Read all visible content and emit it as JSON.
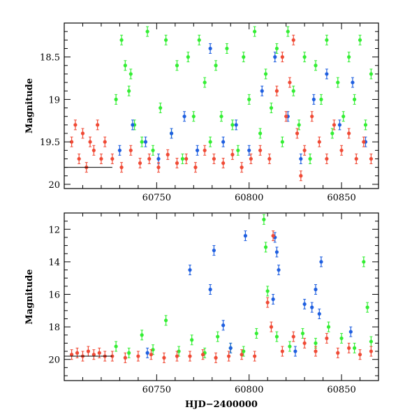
{
  "chart_data": [
    {
      "type": "scatter",
      "panel": "top",
      "xlim": [
        60700,
        60870
      ],
      "ylim": [
        20.05,
        18.1
      ],
      "y_inverted": true,
      "ylabel": "Magnitude",
      "xlabel": "",
      "x_ticks": [
        60750,
        60800,
        60850
      ],
      "y_ticks": [
        18.5,
        19,
        19.5,
        20
      ],
      "y_tick_labels": [
        "18.5",
        "19",
        "19.5",
        "20"
      ],
      "reference_line": {
        "y": 19.8,
        "x_range": [
          60700,
          60726
        ]
      },
      "series": [
        {
          "color": "#33ee33",
          "band": "green",
          "x": [
            60728,
            60731,
            60733,
            60735,
            60736,
            60738,
            60742,
            60745,
            60748,
            60752,
            60755,
            60758,
            60761,
            60764,
            60767,
            60770,
            60773,
            60776,
            60779,
            60782,
            60785,
            60788,
            60791,
            60794,
            60797,
            60800,
            60803,
            60806,
            60809,
            60812,
            60815,
            60818,
            60821,
            60824,
            60827,
            60830,
            60833,
            60836,
            60839,
            60842,
            60845,
            60848,
            60851,
            60854,
            60857,
            60860,
            60863,
            60866
          ],
          "y": [
            19.0,
            18.3,
            18.6,
            18.9,
            18.7,
            19.3,
            19.5,
            18.2,
            19.6,
            19.1,
            18.3,
            19.4,
            18.6,
            19.7,
            18.5,
            19.2,
            18.3,
            18.8,
            19.5,
            18.6,
            19.2,
            18.4,
            19.3,
            19.6,
            18.5,
            19.0,
            18.2,
            19.4,
            18.7,
            19.1,
            18.4,
            19.5,
            18.2,
            18.9,
            19.3,
            18.5,
            19.7,
            18.6,
            19.0,
            18.3,
            19.4,
            18.8,
            19.2,
            18.5,
            19.0,
            18.3,
            19.3,
            18.7
          ]
        },
        {
          "color": "#1f5fe0",
          "band": "blue",
          "x": [
            60730,
            60737,
            60744,
            60751,
            60758,
            60765,
            60772,
            60779,
            60786,
            60793,
            60800,
            60807,
            60814,
            60821,
            60828,
            60835,
            60842,
            60849,
            60856,
            60863
          ],
          "y": [
            19.6,
            19.3,
            19.5,
            19.7,
            19.4,
            19.2,
            19.6,
            18.4,
            19.5,
            19.3,
            19.6,
            18.9,
            18.5,
            19.2,
            19.7,
            19.0,
            18.7,
            19.3,
            18.8,
            19.5
          ]
        },
        {
          "color": "#f04a35",
          "band": "red",
          "x": [
            60704,
            60706,
            60708,
            60710,
            60712,
            60714,
            60716,
            60718,
            60720,
            60722,
            60726,
            60731,
            60736,
            60741,
            60746,
            60751,
            60756,
            60761,
            60766,
            60771,
            60776,
            60781,
            60786,
            60791,
            60796,
            60801,
            60806,
            60811,
            60815,
            60818,
            60820,
            60822,
            60824,
            60826,
            60828,
            60830,
            60834,
            60838,
            60842,
            60846,
            60850,
            60854,
            60858,
            60862,
            60866
          ],
          "y": [
            19.5,
            19.3,
            19.7,
            19.4,
            19.8,
            19.5,
            19.6,
            19.3,
            19.7,
            19.5,
            19.7,
            19.8,
            19.6,
            19.75,
            19.7,
            19.8,
            19.65,
            19.75,
            19.7,
            19.8,
            19.6,
            19.7,
            19.75,
            19.65,
            19.8,
            19.7,
            19.6,
            19.7,
            18.9,
            18.5,
            19.2,
            18.8,
            18.3,
            19.4,
            19.9,
            19.6,
            19.2,
            19.5,
            19.7,
            19.3,
            19.6,
            19.4,
            19.7,
            19.5,
            19.7
          ]
        }
      ]
    },
    {
      "type": "scatter",
      "panel": "bottom",
      "xlim": [
        60700,
        60870
      ],
      "ylim": [
        21.3,
        11.0
      ],
      "y_inverted": true,
      "ylabel": "Magnitude",
      "xlabel": "HJD−2400000",
      "x_ticks": [
        60750,
        60800,
        60850
      ],
      "y_ticks": [
        12,
        14,
        16,
        18,
        20
      ],
      "y_tick_labels": [
        "12",
        "14",
        "16",
        "18",
        "20"
      ],
      "reference_line": {
        "y": 19.8,
        "x_range": [
          60700,
          60726
        ]
      },
      "series": [
        {
          "color": "#33ee33",
          "band": "green",
          "x": [
            60728,
            60735,
            60742,
            60748,
            60755,
            60762,
            60769,
            60776,
            60783,
            60790,
            60797,
            60804,
            60808,
            60809,
            60810,
            60815,
            60822,
            60829,
            60836,
            60843,
            60850,
            60857,
            60862,
            60864,
            60866
          ],
          "y": [
            19.2,
            19.6,
            18.5,
            19.4,
            17.6,
            19.5,
            18.8,
            19.6,
            18.6,
            19.3,
            19.5,
            18.4,
            11.4,
            13.1,
            15.8,
            18.6,
            19.2,
            18.4,
            19.0,
            18.0,
            18.7,
            19.3,
            14.0,
            16.8,
            18.9
          ]
        },
        {
          "color": "#1f5fe0",
          "band": "blue",
          "x": [
            60768,
            60779,
            60781,
            60786,
            60798,
            60813,
            60814,
            60815,
            60816,
            60830,
            60834,
            60836,
            60838,
            60839,
            60745,
            60790,
            60825,
            60855
          ],
          "y": [
            14.5,
            15.7,
            13.3,
            17.9,
            12.4,
            16.3,
            12.5,
            13.4,
            14.5,
            16.6,
            16.8,
            15.7,
            17.2,
            14.0,
            19.6,
            19.3,
            19.5,
            18.3
          ]
        },
        {
          "color": "#f04a35",
          "band": "red",
          "x": [
            60704,
            60707,
            60710,
            60713,
            60716,
            60719,
            60722,
            60726,
            60733,
            60740,
            60747,
            60754,
            60761,
            60768,
            60775,
            60782,
            60789,
            60796,
            60803,
            60810,
            60812,
            60813,
            60818,
            60824,
            60830,
            60836,
            60842,
            60848,
            60854,
            60860,
            60866
          ],
          "y": [
            19.7,
            19.6,
            19.8,
            19.5,
            19.7,
            19.6,
            19.8,
            19.8,
            19.9,
            19.8,
            19.7,
            19.9,
            19.8,
            19.8,
            19.7,
            19.9,
            19.8,
            19.7,
            19.8,
            16.5,
            18.0,
            12.4,
            19.5,
            18.6,
            19.0,
            19.5,
            18.7,
            19.6,
            19.3,
            19.7,
            19.5
          ]
        }
      ]
    }
  ]
}
